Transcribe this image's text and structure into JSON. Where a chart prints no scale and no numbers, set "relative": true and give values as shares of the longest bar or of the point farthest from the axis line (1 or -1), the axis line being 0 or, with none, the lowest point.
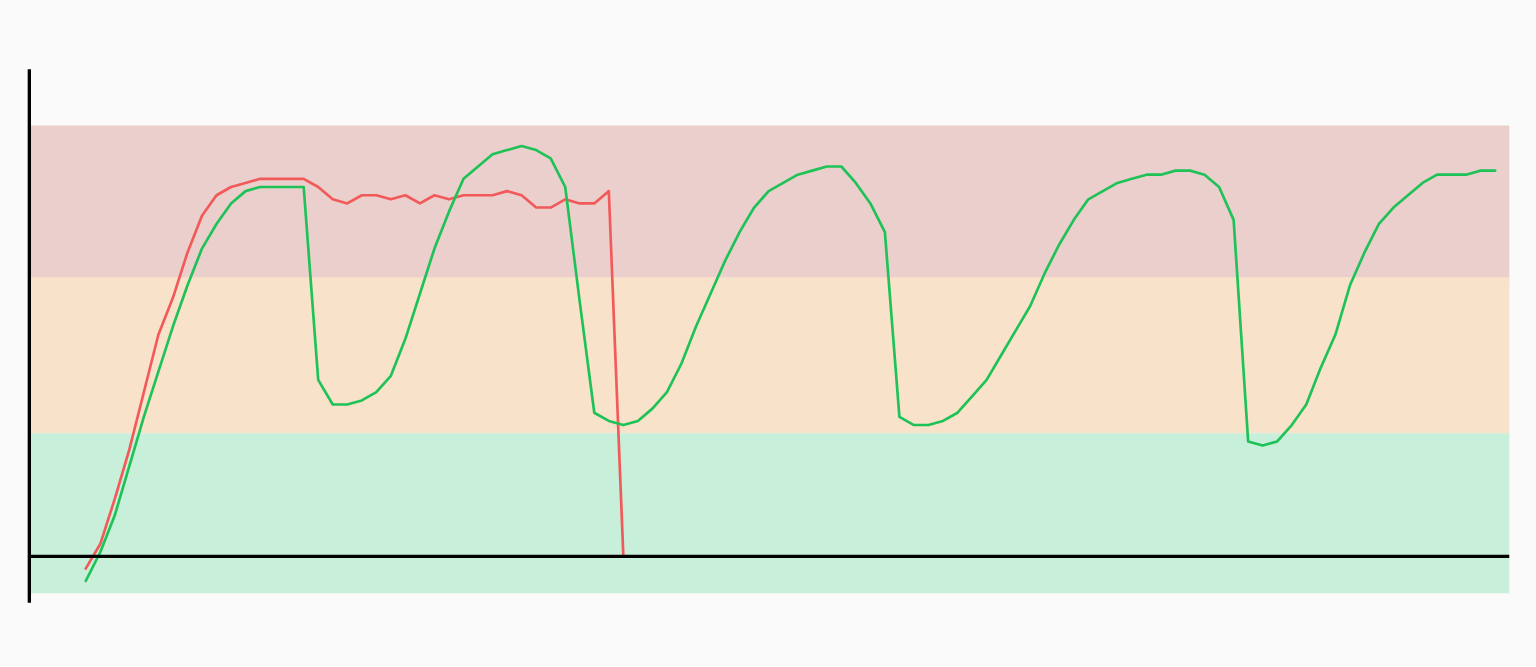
{
  "chart_data": {
    "type": "line",
    "relative": true,
    "categories": [
      null,
      null,
      null,
      null,
      null,
      null,
      null,
      null,
      null,
      null,
      null,
      null,
      null,
      null,
      null,
      null,
      null,
      null,
      null,
      null,
      null,
      null,
      null,
      null,
      null,
      null,
      null,
      null,
      null,
      null,
      null,
      null,
      null,
      null,
      null,
      null,
      null,
      null,
      null,
      null,
      null,
      null,
      null,
      null,
      null,
      null,
      null,
      null,
      null,
      null,
      null,
      null,
      null,
      null,
      null,
      null,
      null,
      null,
      null,
      null,
      null,
      null,
      null,
      null,
      null,
      null,
      null,
      null,
      null,
      null,
      null,
      null,
      null,
      null,
      null,
      null,
      null,
      null,
      null,
      null,
      null,
      null,
      null,
      null,
      null,
      null,
      null,
      null,
      null,
      null,
      null,
      null,
      null,
      null,
      null,
      null,
      null,
      null
    ],
    "bands": [
      {
        "axis": "y",
        "from": 0.66,
        "to": 1.05,
        "color": "#ebcfcd"
      },
      {
        "axis": "y",
        "from": 0.3,
        "to": 0.68,
        "color": "#f8e2c9"
      },
      {
        "axis": "y",
        "from": -0.09,
        "to": 0.3,
        "color": "#c7efd9"
      }
    ],
    "series": [
      {
        "color": "#f25a5a",
        "values": [
          -0.03,
          0.03,
          0.14,
          0.26,
          0.4,
          0.54,
          0.63,
          0.74,
          0.83,
          0.88,
          0.9,
          0.91,
          0.92,
          0.92,
          0.92,
          0.92,
          0.9,
          0.87,
          0.86,
          0.88,
          0.88,
          0.87,
          0.88,
          0.86,
          0.88,
          0.87,
          0.88,
          0.88,
          0.88,
          0.89,
          0.88,
          0.85,
          0.85,
          0.87,
          0.86,
          0.86,
          0.89,
          0.0,
          null,
          null,
          null,
          null,
          null,
          null,
          null,
          null,
          null,
          null,
          null,
          null,
          null,
          null,
          null,
          null,
          null,
          null,
          null,
          null,
          null,
          null,
          null,
          null,
          null,
          null,
          null,
          null,
          null,
          null,
          null,
          null,
          null,
          null,
          null,
          null,
          null,
          null,
          null,
          null,
          null,
          null,
          null,
          null,
          null,
          null,
          null,
          null,
          null,
          null,
          null,
          null,
          null,
          null,
          null,
          null,
          null,
          null,
          null,
          null
        ]
      },
      {
        "color": "#1fc257",
        "values": [
          -0.06,
          0.01,
          0.1,
          0.22,
          0.34,
          0.45,
          0.56,
          0.66,
          0.75,
          0.81,
          0.86,
          0.89,
          0.9,
          0.9,
          0.9,
          0.9,
          0.43,
          0.37,
          0.37,
          0.38,
          0.4,
          0.44,
          0.53,
          0.64,
          0.75,
          0.84,
          0.92,
          0.95,
          0.98,
          0.99,
          1.0,
          0.99,
          0.97,
          0.9,
          0.62,
          0.35,
          0.33,
          0.32,
          0.33,
          0.36,
          0.4,
          0.47,
          0.56,
          0.64,
          0.72,
          0.79,
          0.85,
          0.89,
          0.91,
          0.93,
          0.94,
          0.95,
          0.95,
          0.91,
          0.86,
          0.79,
          0.34,
          0.32,
          0.32,
          0.33,
          0.35,
          0.39,
          0.43,
          0.49,
          0.55,
          0.61,
          0.69,
          0.76,
          0.82,
          0.87,
          0.89,
          0.91,
          0.92,
          0.93,
          0.93,
          0.94,
          0.94,
          0.93,
          0.9,
          0.82,
          0.28,
          0.27,
          0.28,
          0.32,
          0.37,
          0.46,
          0.54,
          0.66,
          0.74,
          0.81,
          0.85,
          0.88,
          0.91,
          0.93,
          0.93,
          0.93,
          0.94,
          0.94
        ]
      }
    ]
  }
}
